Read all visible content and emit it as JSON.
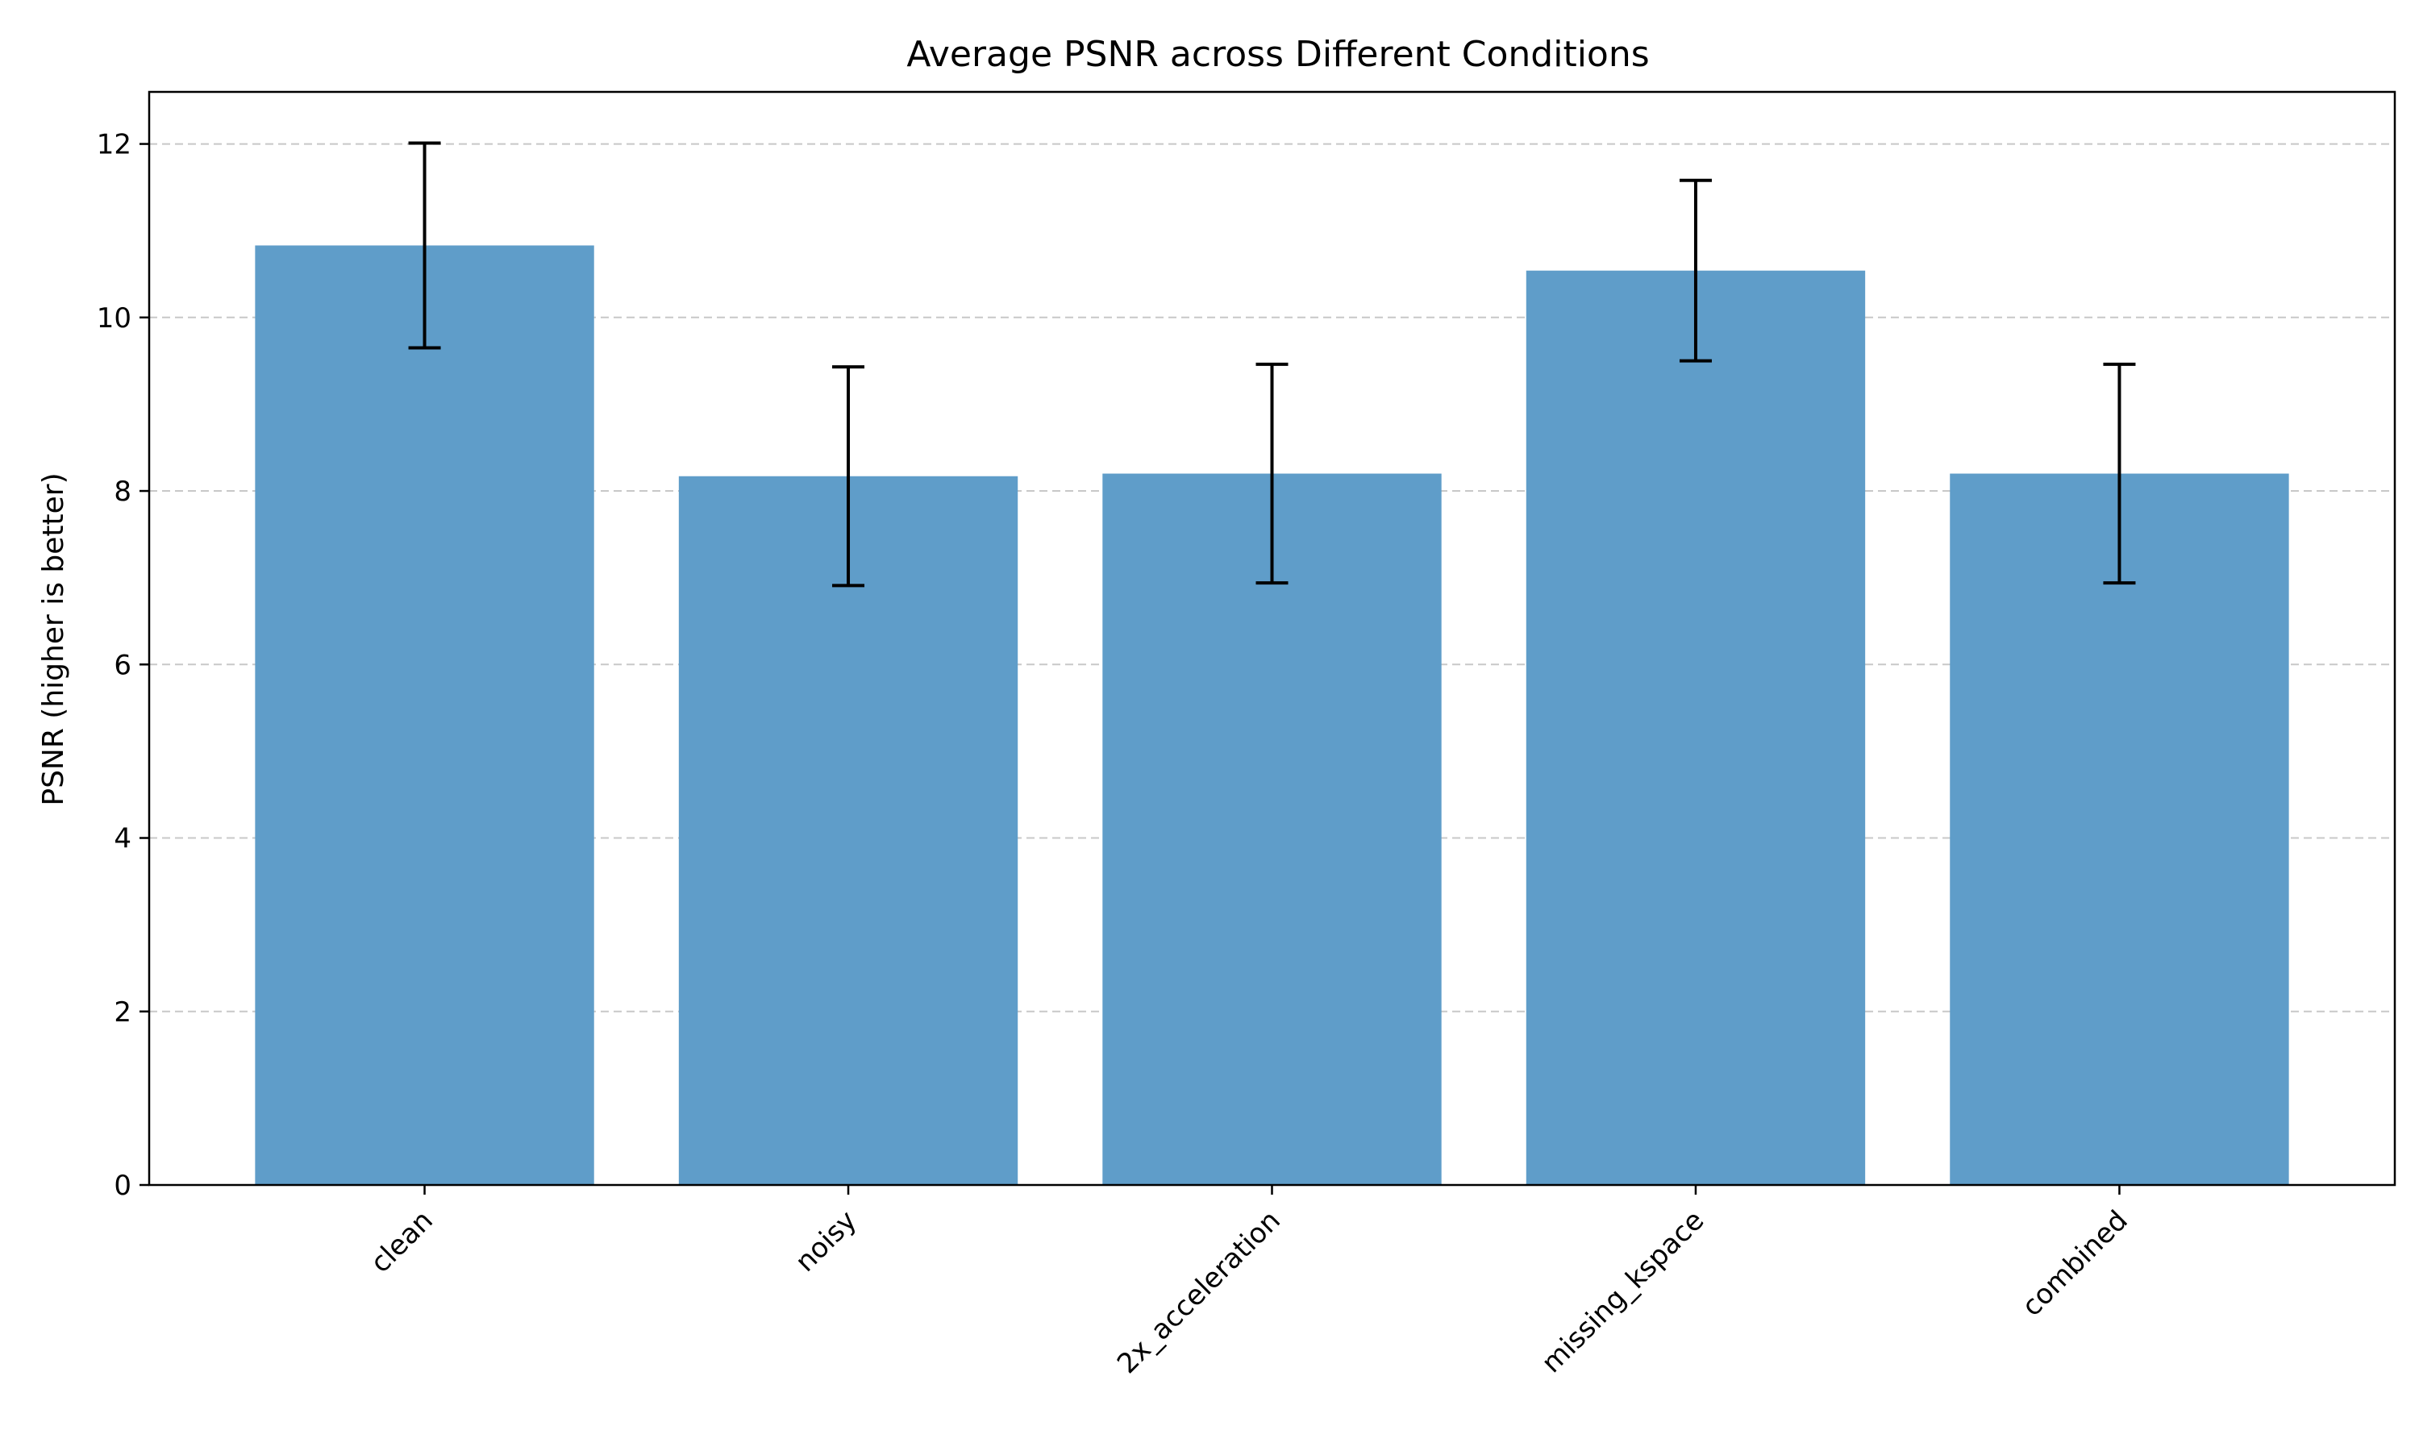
{
  "chart_data": {
    "type": "bar",
    "title": "Average PSNR across Different Conditions",
    "xlabel": "",
    "ylabel": "PSNR (higher is better)",
    "categories": [
      "clean",
      "noisy",
      "2x_acceleration",
      "missing_kspace",
      "combined"
    ],
    "values": [
      10.83,
      8.17,
      8.2,
      10.54,
      8.2
    ],
    "errors": [
      1.18,
      1.26,
      1.26,
      1.04,
      1.26
    ],
    "ylim": [
      0,
      12.6
    ],
    "yticks": [
      0,
      2,
      4,
      6,
      8,
      10,
      12
    ],
    "ytick_labels": [
      "0",
      "2",
      "4",
      "6",
      "8",
      "10",
      "12"
    ],
    "grid": "y, dashed",
    "colors": {
      "bar": "#5f9dc9",
      "error": "#000000",
      "grid": "#c8c8c8",
      "axis": "#000000"
    }
  }
}
